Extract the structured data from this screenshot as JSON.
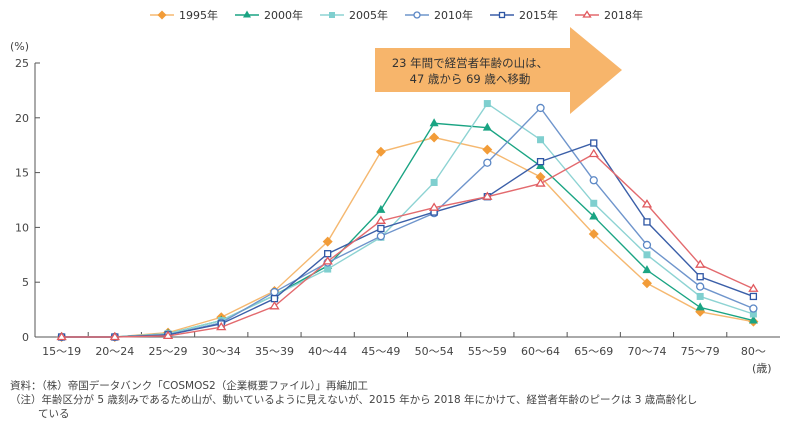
{
  "chart_data": {
    "type": "line",
    "title": "",
    "xlabel": "(歳)",
    "ylabel": "(%)",
    "ylim": [
      0,
      25
    ],
    "yticks": [
      0,
      5,
      10,
      15,
      20,
      25
    ],
    "grid": false,
    "legend_position": "top",
    "categories": [
      "15〜19",
      "20〜24",
      "25〜29",
      "30〜34",
      "35〜39",
      "40〜44",
      "45〜49",
      "50〜54",
      "55〜59",
      "60〜64",
      "65〜69",
      "70〜74",
      "75〜79",
      "80〜"
    ],
    "series": [
      {
        "name": "1995年",
        "color": "#f29c38",
        "marker": "diamond",
        "line_color": "#f5b870",
        "values": [
          0.0,
          0.0,
          0.4,
          1.8,
          4.2,
          8.7,
          16.9,
          18.2,
          17.1,
          14.6,
          9.4,
          4.9,
          2.3,
          1.4
        ]
      },
      {
        "name": "2000年",
        "color": "#1aa483",
        "marker": "triangle",
        "line_color": "#1aa483",
        "values": [
          0.0,
          0.0,
          0.3,
          1.5,
          3.8,
          6.5,
          11.6,
          19.5,
          19.1,
          15.6,
          11.0,
          6.1,
          2.7,
          1.5
        ]
      },
      {
        "name": "2005年",
        "color": "#7fcfcf",
        "marker": "square-filled",
        "line_color": "#8dd3d3",
        "values": [
          0.0,
          0.0,
          0.3,
          1.5,
          3.8,
          6.2,
          9.1,
          14.1,
          21.3,
          18.0,
          12.2,
          7.5,
          3.7,
          2.1
        ]
      },
      {
        "name": "2010年",
        "color": "#5b87c5",
        "marker": "circle-open",
        "line_color": "#6f95cc",
        "values": [
          0.0,
          0.0,
          0.2,
          1.3,
          4.1,
          6.8,
          9.2,
          11.3,
          15.9,
          20.9,
          14.3,
          8.4,
          4.6,
          2.6
        ]
      },
      {
        "name": "2015年",
        "color": "#2e56a4",
        "marker": "square-open",
        "line_color": "#3b5fa8",
        "values": [
          0.0,
          0.0,
          0.2,
          1.2,
          3.5,
          7.6,
          9.9,
          11.4,
          12.8,
          16.0,
          17.7,
          10.5,
          5.5,
          3.7
        ]
      },
      {
        "name": "2018年",
        "color": "#e05a5f",
        "marker": "triangle-open",
        "line_color": "#e36a6e",
        "values": [
          0.0,
          0.0,
          0.1,
          0.9,
          2.8,
          6.9,
          10.6,
          11.8,
          12.8,
          14.0,
          16.7,
          12.1,
          6.6,
          4.4
        ]
      }
    ],
    "annotation": {
      "line1": "23 年間で経営者年齢の山は、",
      "line2": "47 歳から 69 歳へ移動",
      "color": "#f7b56b"
    }
  },
  "footer": {
    "source": "資料：（株）帝国データバンク「COSMOS2（企業概要ファイル）」再編加工",
    "note_line1": "（注）年齢区分が 5 歳刻みであるため山が、動いているように見えないが、2015 年から 2018 年にかけて、経営者年齢のピークは 3 歳高齢化し",
    "note_line2": "ている"
  }
}
